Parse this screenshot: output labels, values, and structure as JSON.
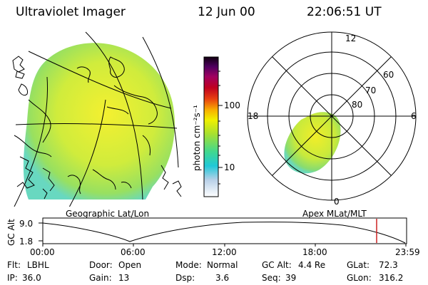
{
  "header": {
    "title": "Ultraviolet Imager",
    "date": "12 Jun 00",
    "time": "22:06:51 UT"
  },
  "colorbar": {
    "label": "photon cm⁻²s⁻¹",
    "tick_100": "100",
    "tick_10": "10"
  },
  "polar": {
    "labels": {
      "top": "12",
      "left": "18",
      "right": "6",
      "bottom": "0"
    },
    "lat_labels": [
      "60",
      "70",
      "80"
    ]
  },
  "map_labels": {
    "left": "Geographic Lat/Lon",
    "right": "Apex MLat/MLT"
  },
  "altitude_panel": {
    "ylabel": "GC Alt",
    "ymax": "9.0",
    "ymin": "1.8",
    "xticks": [
      "00:00",
      "06:00",
      "12:00",
      "18:00",
      "23:59"
    ],
    "marker_color": "#cc2222"
  },
  "info": {
    "row1": [
      {
        "k": "Flt:",
        "v": "LBHL"
      },
      {
        "k": "Door:",
        "v": "Open"
      },
      {
        "k": "Mode:",
        "v": "Normal"
      },
      {
        "k": "GC Alt:",
        "v": "4.4 Re"
      },
      {
        "k": "GLat:",
        "v": "72.3"
      }
    ],
    "row2": [
      {
        "k": "IP:",
        "v": "36.0"
      },
      {
        "k": "Gain:",
        "v": "13"
      },
      {
        "k": "Dsp:",
        "v": "3.6"
      },
      {
        "k": "Seq:",
        "v": "39"
      },
      {
        "k": "GLon:",
        "v": "316.2"
      }
    ]
  }
}
